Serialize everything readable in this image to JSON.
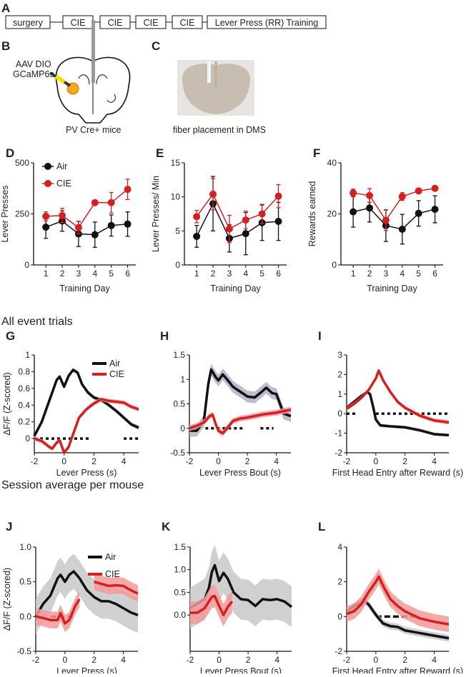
{
  "panel_letters": {
    "A": "A",
    "B": "B",
    "C": "C",
    "D": "D",
    "E": "E",
    "F": "F",
    "G": "G",
    "H": "H",
    "I": "I",
    "J": "J",
    "K": "K",
    "L": "L"
  },
  "timeline": [
    "surgery",
    "CIE",
    "CIE",
    "CIE",
    "CIE",
    "Lever Press (RR) Training"
  ],
  "panel_b": {
    "injection_label_1": "AAV DIO",
    "injection_label_2": "GCaMP6s",
    "caption": "PV Cre+ mice"
  },
  "panel_c": {
    "caption": "fiber placement in DMS"
  },
  "sections": {
    "all_trials": "All event trials",
    "session_avg": "Session average per mouse"
  },
  "colors": {
    "air": "#111111",
    "cie": "#d42020",
    "air_band": "#b0b3c8",
    "cie_band": "#f0a0a0",
    "session_air_band": "#c8c8c8",
    "session_cie_band": "#f29a9a"
  },
  "chart_data": [
    {
      "id": "D",
      "type": "line",
      "xlabel": "Training Day",
      "ylabel": "Lever Presses",
      "xlim": [
        0.25,
        6.5
      ],
      "ylim": [
        0,
        500
      ],
      "xticks": [
        1,
        2,
        3,
        4,
        5,
        6
      ],
      "yticks": [
        0,
        250,
        500
      ],
      "legend": {
        "placement": "top-left",
        "entries": [
          "Air",
          "CIE"
        ]
      },
      "x": [
        1,
        2,
        3,
        4,
        5,
        6
      ],
      "series": [
        {
          "name": "Air",
          "color": "#111111",
          "values": [
            185,
            215,
            152,
            148,
            193,
            200
          ],
          "error": [
            55,
            50,
            62,
            62,
            52,
            60
          ]
        },
        {
          "name": "CIE",
          "color": "#d42020",
          "values": [
            238,
            242,
            183,
            305,
            305,
            370
          ],
          "error": [
            22,
            35,
            30,
            12,
            50,
            50
          ]
        }
      ]
    },
    {
      "id": "E",
      "type": "line",
      "xlabel": "Training Day",
      "ylabel": "Lever Presses/ Min",
      "xlim": [
        0.25,
        6.5
      ],
      "ylim": [
        0,
        15
      ],
      "xticks": [
        1,
        2,
        3,
        4,
        5,
        6
      ],
      "yticks": [
        0,
        5,
        10,
        15
      ],
      "x": [
        1,
        2,
        3,
        4,
        5,
        6
      ],
      "series": [
        {
          "name": "Air",
          "color": "#111111",
          "values": [
            4.2,
            9.0,
            3.9,
            4.6,
            6.2,
            6.4
          ],
          "error": [
            1.6,
            4.0,
            2.0,
            3.1,
            2.6,
            2.8
          ]
        },
        {
          "name": "CIE",
          "color": "#d42020",
          "values": [
            7.1,
            10.4,
            5.3,
            6.6,
            7.5,
            10.1
          ],
          "error": [
            0.9,
            2.3,
            2.0,
            1.3,
            1.4,
            1.7
          ]
        }
      ]
    },
    {
      "id": "F",
      "type": "line",
      "xlabel": "Training Day",
      "ylabel": "Rewards earned",
      "xlim": [
        0.25,
        6.5
      ],
      "ylim": [
        0,
        40
      ],
      "xticks": [
        1,
        2,
        3,
        4,
        5,
        6
      ],
      "yticks": [
        0,
        20,
        40
      ],
      "x": [
        1,
        2,
        3,
        4,
        5,
        6
      ],
      "series": [
        {
          "name": "Air",
          "color": "#111111",
          "values": [
            20.8,
            22.3,
            15.4,
            14.0,
            20.2,
            21.8
          ],
          "error": [
            6,
            5.5,
            6.2,
            5.8,
            5,
            5.3
          ]
        },
        {
          "name": "CIE",
          "color": "#d42020",
          "values": [
            28.2,
            27.2,
            17.5,
            26.8,
            29.0,
            30.0
          ],
          "error": [
            1.5,
            2.7,
            4,
            1.5,
            0.8,
            0.8
          ]
        }
      ]
    },
    {
      "id": "G",
      "type": "line",
      "xlabel": "Lever Press (s)",
      "ylabel": "ΔF/F (Z-scored)",
      "xlim": [
        -2,
        5
      ],
      "ylim": [
        -0.17,
        1
      ],
      "xticks": [
        -2,
        0,
        2,
        4
      ],
      "yticks": [
        0,
        0.2,
        0.4,
        0.6,
        0.8,
        1
      ],
      "ytick_labels": [
        "0",
        "0.2",
        "0.4",
        "0.6",
        "0.8",
        "1"
      ],
      "legend": {
        "placement": "top-right",
        "entries": [
          "Air",
          "CIE"
        ]
      },
      "significance": {
        "y": 0,
        "style": "dotted",
        "ranges": [
          [
            -2,
            1.8
          ],
          [
            4,
            5
          ]
        ]
      },
      "series": [
        {
          "name": "Air",
          "color": "#111111",
          "band": 0.025,
          "band_color": "#b0b3c8",
          "x": [
            -2,
            -1.5,
            -1,
            -0.5,
            -0.3,
            0,
            0.3,
            0.6,
            0.9,
            1.2,
            1.6,
            2,
            2.5,
            3,
            3.5,
            4,
            4.5,
            5
          ],
          "values": [
            0.03,
            0.2,
            0.45,
            0.7,
            0.74,
            0.62,
            0.75,
            0.82,
            0.79,
            0.65,
            0.55,
            0.49,
            0.46,
            0.4,
            0.33,
            0.25,
            0.17,
            0.13
          ]
        },
        {
          "name": "CIE",
          "color": "#d42020",
          "band": 0.025,
          "band_color": "#f0a0a0",
          "x": [
            -2,
            -1.5,
            -1,
            -0.8,
            -0.5,
            -0.3,
            0,
            0.3,
            0.6,
            1,
            1.5,
            2,
            2.5,
            3,
            3.5,
            4,
            4.5,
            5
          ],
          "values": [
            0,
            -0.03,
            -0.1,
            -0.12,
            -0.05,
            -0.02,
            -0.17,
            -0.1,
            0.05,
            0.25,
            0.35,
            0.42,
            0.47,
            0.45,
            0.44,
            0.43,
            0.38,
            0.35
          ]
        }
      ]
    },
    {
      "id": "H",
      "type": "line",
      "xlabel": "Lever Press Bout (s)",
      "ylabel": "",
      "xlim": [
        -2,
        5
      ],
      "ylim": [
        -0.5,
        1.5
      ],
      "xticks": [
        -2,
        0,
        2,
        4
      ],
      "yticks": [
        -0.5,
        0,
        0.5,
        1,
        1.5
      ],
      "ytick_labels": [
        "-0.5",
        "0",
        "0.5",
        "1",
        "1.5"
      ],
      "significance": {
        "y": 0,
        "style": "dotted",
        "ranges": [
          [
            -0.9,
            1.8
          ],
          [
            2.9,
            3.8
          ]
        ]
      },
      "series": [
        {
          "name": "Air",
          "color": "#111111",
          "band": 0.12,
          "band_color": "#b0b3c8",
          "x": [
            -2,
            -1.5,
            -1,
            -0.7,
            -0.5,
            -0.2,
            0,
            0.3,
            0.6,
            1,
            1.5,
            2,
            2.5,
            3,
            3.3,
            3.7,
            4,
            4.5,
            5
          ],
          "values": [
            -0.05,
            -0.05,
            0.15,
            0.9,
            1.2,
            1.05,
            0.98,
            1.1,
            1.0,
            0.85,
            0.75,
            0.65,
            0.63,
            0.75,
            0.83,
            0.72,
            0.7,
            0.3,
            0.25
          ]
        },
        {
          "name": "CIE",
          "color": "#d42020",
          "band": 0.06,
          "band_color": "#f0a0a0",
          "x": [
            -2,
            -1.5,
            -1,
            -0.6,
            -0.4,
            -0.2,
            0,
            0.3,
            0.6,
            1,
            1.5,
            2,
            2.5,
            3,
            3.5,
            4,
            4.5,
            5
          ],
          "values": [
            0,
            0.05,
            0.12,
            0.25,
            0.28,
            0.1,
            -0.05,
            -0.1,
            0,
            0.15,
            0.2,
            0.22,
            0.25,
            0.28,
            0.3,
            0.32,
            0.35,
            0.38
          ]
        }
      ]
    },
    {
      "id": "I",
      "type": "line",
      "xlabel": "First Head Entry after Reward (s)",
      "ylabel": "",
      "xlim": [
        -2,
        5
      ],
      "ylim": [
        -2,
        3
      ],
      "xticks": [
        -2,
        0,
        2,
        4
      ],
      "yticks": [
        -2,
        -1,
        0,
        1,
        2,
        3
      ],
      "ytick_labels": [
        "-2",
        "-1",
        "0",
        "1",
        "2",
        "3"
      ],
      "significance": {
        "y": 0,
        "style": "dotted",
        "ranges": [
          [
            -2,
            -1.4
          ],
          [
            0,
            5
          ]
        ]
      },
      "series": [
        {
          "name": "Air",
          "color": "#111111",
          "band": 0.08,
          "band_color": "#b0b3c8",
          "x": [
            -2,
            -1.5,
            -1,
            -0.6,
            -0.4,
            -0.2,
            0,
            0.3,
            1,
            2,
            3,
            4,
            5
          ],
          "values": [
            0.3,
            0.6,
            0.9,
            1.1,
            1.0,
            0.4,
            -0.3,
            -0.6,
            -0.65,
            -0.7,
            -0.85,
            -1.05,
            -1.1
          ]
        },
        {
          "name": "CIE",
          "color": "#d42020",
          "band": 0.1,
          "band_color": "#f0a0a0",
          "x": [
            -2,
            -1.5,
            -1,
            -0.5,
            0,
            0.2,
            0.5,
            1,
            1.5,
            2,
            3,
            4,
            5
          ],
          "values": [
            0.25,
            0.5,
            0.8,
            1.2,
            1.8,
            2.2,
            1.7,
            1.1,
            0.6,
            0.3,
            -0.1,
            -0.35,
            -0.45
          ]
        }
      ]
    },
    {
      "id": "J",
      "type": "line",
      "xlabel": "Lever Press (s)",
      "ylabel": "ΔF/F (Z-scored)",
      "xlim": [
        -2,
        5
      ],
      "ylim": [
        -0.5,
        1.0
      ],
      "xticks": [
        -2,
        0,
        2,
        4
      ],
      "yticks": [
        -0.5,
        0,
        0.5,
        1.0
      ],
      "ytick_labels": [
        "-0.5",
        "0.0",
        "0.5",
        "1.0"
      ],
      "legend": {
        "placement": "top-right",
        "entries": [
          "Air",
          "CIE"
        ]
      },
      "significance": {
        "y": 0,
        "style": "dashed",
        "ranges": [
          [
            -1,
            0.7
          ]
        ]
      },
      "series": [
        {
          "name": "Air",
          "color": "#111111",
          "band": 0.25,
          "band_color": "#c8c8c8",
          "x": [
            -2,
            -1.5,
            -1,
            -0.5,
            -0.3,
            0,
            0.3,
            0.6,
            1,
            1.5,
            2,
            2.5,
            3,
            3.5,
            4,
            4.5,
            5
          ],
          "values": [
            0,
            0.18,
            0.3,
            0.55,
            0.6,
            0.5,
            0.6,
            0.65,
            0.55,
            0.38,
            0.28,
            0.22,
            0.22,
            0.18,
            0.12,
            0.06,
            0.02
          ]
        },
        {
          "name": "CIE",
          "color": "#d42020",
          "band": 0.12,
          "band_color": "#f29a9a",
          "x": [
            -2,
            -1.5,
            -1,
            -0.5,
            -0.3,
            0,
            0.3,
            0.7,
            1,
            1.5,
            2,
            2.5,
            3,
            3.5,
            4,
            4.5,
            5
          ],
          "values": [
            0,
            -0.02,
            -0.05,
            -0.05,
            0.05,
            -0.1,
            -0.05,
            0.15,
            0.25,
            null,
            0.5,
            0.47,
            0.44,
            0.45,
            0.44,
            0.38,
            0.33
          ]
        }
      ]
    },
    {
      "id": "K",
      "type": "line",
      "xlabel": "Lever Press Bout (s)",
      "ylabel": "",
      "xlim": [
        -2,
        5
      ],
      "ylim": [
        -0.8,
        1.5
      ],
      "xticks": [
        -2,
        0,
        2,
        4
      ],
      "yticks": [
        0,
        0.5,
        1.0,
        1.5
      ],
      "ytick_labels": [
        "0.0",
        "0.5",
        "1.0",
        "1.5"
      ],
      "series": [
        {
          "name": "Air",
          "color": "#111111",
          "band": 0.45,
          "band_color": "#c8c8c8",
          "x": [
            -2,
            -1.5,
            -1,
            -0.7,
            -0.5,
            -0.3,
            0,
            0.3,
            0.6,
            1,
            1.5,
            2,
            2.5,
            3,
            3.5,
            4,
            4.5,
            5
          ],
          "values": [
            0.15,
            0.25,
            0.35,
            0.6,
            0.95,
            1.1,
            0.75,
            0.93,
            0.8,
            0.5,
            0.35,
            0.33,
            0.2,
            0.35,
            0.33,
            0.35,
            0.3,
            0.18
          ]
        },
        {
          "name": "CIE",
          "color": "#d42020",
          "band": 0.25,
          "band_color": "#f29a9a",
          "x": [
            -2,
            -1.5,
            -1,
            -0.5,
            -0.3,
            0,
            0.3,
            0.6,
            0.9
          ],
          "values": [
            0.05,
            0.05,
            0.15,
            0.4,
            0.42,
            0.2,
            0,
            0.18,
            0.3
          ]
        }
      ]
    },
    {
      "id": "L",
      "type": "line",
      "xlabel": "First Head Entry after Reward (s)",
      "ylabel": "",
      "xlim": [
        -2,
        5
      ],
      "ylim": [
        -2,
        4
      ],
      "xticks": [
        -2,
        0,
        2,
        4
      ],
      "yticks": [
        -2,
        0,
        2,
        4
      ],
      "ytick_labels": [
        "-2",
        "0",
        "2",
        "4"
      ],
      "significance": {
        "y": 0,
        "style": "dashed",
        "ranges": [
          [
            0,
            2.7
          ]
        ]
      },
      "series": [
        {
          "name": "Air",
          "color": "#111111",
          "band": 0.2,
          "band_color": "#c8c8c8",
          "x": [
            -2,
            -1.5,
            -1,
            -0.8,
            -0.5,
            0,
            0.5,
            1,
            1.5,
            2,
            3,
            4,
            5
          ],
          "values": [
            0.3,
            0.6,
            0.8,
            0.9,
            0.7,
            0.1,
            -0.4,
            -0.55,
            -0.6,
            -0.8,
            -0.95,
            -1.1,
            -1.25
          ]
        },
        {
          "name": "CIE",
          "color": "#d42020",
          "band": 0.45,
          "band_color": "#f29a9a",
          "x": [
            -2,
            -1.5,
            -1,
            -0.5,
            0,
            0.2,
            0.6,
            1,
            1.5,
            2,
            3,
            4,
            5
          ],
          "values": [
            0.15,
            0.3,
            0.7,
            1.4,
            2.0,
            2.3,
            1.6,
            1.0,
            0.6,
            0.3,
            -0.1,
            -0.3,
            -0.45
          ]
        }
      ]
    }
  ]
}
